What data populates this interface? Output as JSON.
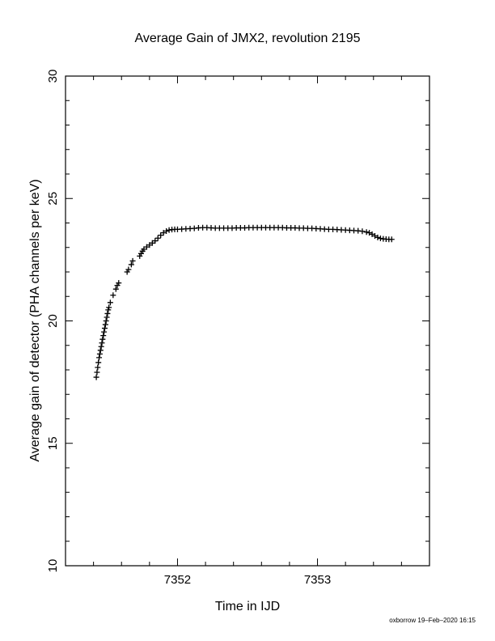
{
  "chart_data": {
    "type": "scatter",
    "title": "Average Gain of JMX2, revolution 2195",
    "xlabel": "Time in IJD",
    "ylabel": "Average gain of detector (PHA channels per keV)",
    "xlim": [
      7351.2,
      7353.8
    ],
    "ylim": [
      10,
      30
    ],
    "x_ticks": [
      7352,
      7353
    ],
    "y_ticks": [
      10,
      15,
      20,
      25,
      30
    ],
    "x_tick_labels": [
      "7352",
      "7353"
    ],
    "y_tick_labels": [
      "10",
      "15",
      "20",
      "25",
      "30"
    ],
    "marker": "+",
    "grid": false,
    "series": [
      {
        "points": [
          [
            7351.42,
            17.7
          ],
          [
            7351.425,
            17.9
          ],
          [
            7351.43,
            18.1
          ],
          [
            7351.435,
            18.3
          ],
          [
            7351.44,
            18.5
          ],
          [
            7351.445,
            18.65
          ],
          [
            7351.45,
            18.8
          ],
          [
            7351.455,
            18.95
          ],
          [
            7351.46,
            19.1
          ],
          [
            7351.465,
            19.25
          ],
          [
            7351.47,
            19.4
          ],
          [
            7351.475,
            19.55
          ],
          [
            7351.48,
            19.7
          ],
          [
            7351.485,
            19.85
          ],
          [
            7351.49,
            20.0
          ],
          [
            7351.495,
            20.15
          ],
          [
            7351.5,
            20.3
          ],
          [
            7351.505,
            20.45
          ],
          [
            7351.51,
            20.55
          ],
          [
            7351.52,
            20.75
          ],
          [
            7351.54,
            21.05
          ],
          [
            7351.56,
            21.3
          ],
          [
            7351.57,
            21.45
          ],
          [
            7351.58,
            21.55
          ],
          [
            7351.64,
            22.0
          ],
          [
            7351.65,
            22.1
          ],
          [
            7351.67,
            22.3
          ],
          [
            7351.68,
            22.45
          ],
          [
            7351.73,
            22.65
          ],
          [
            7351.74,
            22.75
          ],
          [
            7351.75,
            22.85
          ],
          [
            7351.76,
            22.93
          ],
          [
            7351.78,
            23.02
          ],
          [
            7351.8,
            23.1
          ],
          [
            7351.82,
            23.18
          ],
          [
            7351.84,
            23.27
          ],
          [
            7351.86,
            23.38
          ],
          [
            7351.88,
            23.5
          ],
          [
            7351.9,
            23.6
          ],
          [
            7351.92,
            23.67
          ],
          [
            7351.94,
            23.71
          ],
          [
            7351.96,
            23.73
          ],
          [
            7351.98,
            23.74
          ],
          [
            7352.0,
            23.74
          ],
          [
            7352.03,
            23.75
          ],
          [
            7352.06,
            23.76
          ],
          [
            7352.09,
            23.77
          ],
          [
            7352.12,
            23.78
          ],
          [
            7352.15,
            23.8
          ],
          [
            7352.18,
            23.81
          ],
          [
            7352.21,
            23.81
          ],
          [
            7352.24,
            23.8
          ],
          [
            7352.27,
            23.79
          ],
          [
            7352.3,
            23.79
          ],
          [
            7352.33,
            23.79
          ],
          [
            7352.36,
            23.79
          ],
          [
            7352.39,
            23.79
          ],
          [
            7352.42,
            23.8
          ],
          [
            7352.45,
            23.8
          ],
          [
            7352.48,
            23.8
          ],
          [
            7352.51,
            23.81
          ],
          [
            7352.54,
            23.81
          ],
          [
            7352.57,
            23.81
          ],
          [
            7352.6,
            23.81
          ],
          [
            7352.63,
            23.81
          ],
          [
            7352.66,
            23.81
          ],
          [
            7352.69,
            23.81
          ],
          [
            7352.72,
            23.81
          ],
          [
            7352.75,
            23.81
          ],
          [
            7352.78,
            23.8
          ],
          [
            7352.81,
            23.8
          ],
          [
            7352.84,
            23.8
          ],
          [
            7352.87,
            23.79
          ],
          [
            7352.9,
            23.79
          ],
          [
            7352.93,
            23.78
          ],
          [
            7352.96,
            23.78
          ],
          [
            7352.99,
            23.77
          ],
          [
            7353.02,
            23.76
          ],
          [
            7353.05,
            23.75
          ],
          [
            7353.08,
            23.74
          ],
          [
            7353.11,
            23.74
          ],
          [
            7353.14,
            23.73
          ],
          [
            7353.17,
            23.72
          ],
          [
            7353.2,
            23.71
          ],
          [
            7353.23,
            23.7
          ],
          [
            7353.26,
            23.69
          ],
          [
            7353.29,
            23.68
          ],
          [
            7353.32,
            23.66
          ],
          [
            7353.35,
            23.63
          ],
          [
            7353.37,
            23.6
          ],
          [
            7353.39,
            23.54
          ],
          [
            7353.41,
            23.47
          ],
          [
            7353.43,
            23.41
          ],
          [
            7353.45,
            23.37
          ],
          [
            7353.47,
            23.35
          ],
          [
            7353.49,
            23.34
          ],
          [
            7353.51,
            23.33
          ],
          [
            7353.53,
            23.33
          ]
        ]
      }
    ]
  },
  "footer": {
    "credit": "oxborrow 19–Feb–2020 16:15"
  }
}
